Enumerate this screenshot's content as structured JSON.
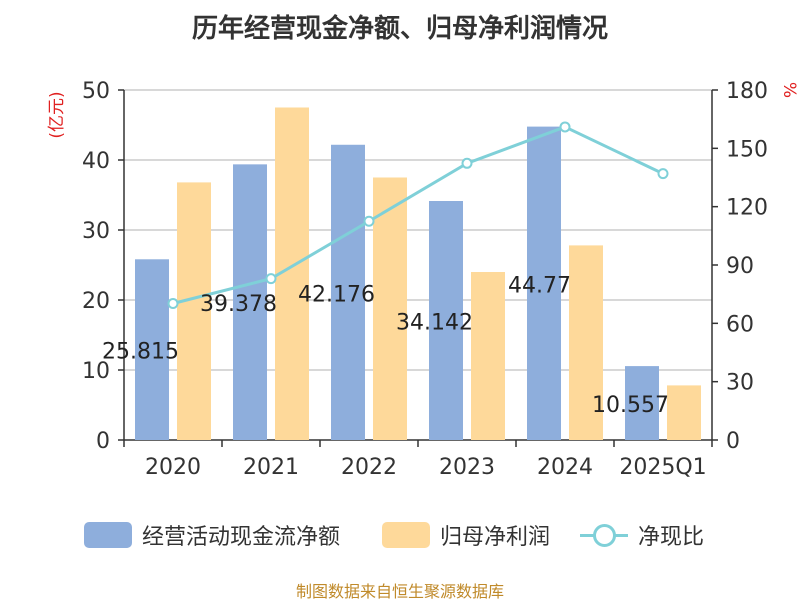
{
  "title": "历年经营现金净额、归母净利润情况",
  "source": "制图数据来自恒生聚源数据库",
  "colors": {
    "cash": "#8eaedc",
    "profit": "#fed99a",
    "ratio": "#7fd0d8",
    "left_unit": "#e02020",
    "right_unit": "#e02020"
  },
  "chart_data": {
    "type": "bar",
    "categories": [
      "2020",
      "2021",
      "2022",
      "2023",
      "2024",
      "2025Q1"
    ],
    "y_left": {
      "unit": "(亿元)",
      "ylim": [
        0,
        50
      ],
      "ticks": [
        "0",
        "10",
        "20",
        "30",
        "40",
        "50"
      ]
    },
    "y_right": {
      "unit": "%",
      "ylim": [
        0,
        180
      ],
      "ticks": [
        "0",
        "30",
        "60",
        "90",
        "120",
        "150",
        "180"
      ]
    },
    "grid": true,
    "legend": "bottom",
    "series": [
      {
        "name": "经营活动现金流净额",
        "type": "bar",
        "axis": "left",
        "values": [
          25.815,
          39.378,
          42.176,
          34.142,
          44.77,
          10.557
        ],
        "labels": [
          "25.815",
          "39.378",
          "42.176",
          "34.142",
          "44.77",
          "10.557"
        ]
      },
      {
        "name": "归母净利润",
        "type": "bar",
        "axis": "left",
        "values": [
          36.8,
          47.5,
          37.5,
          24.0,
          27.8,
          7.8
        ]
      },
      {
        "name": "净现比",
        "type": "line",
        "axis": "right",
        "values": [
          70.2,
          83.0,
          112.5,
          142.3,
          161.0,
          137.0
        ]
      }
    ]
  }
}
